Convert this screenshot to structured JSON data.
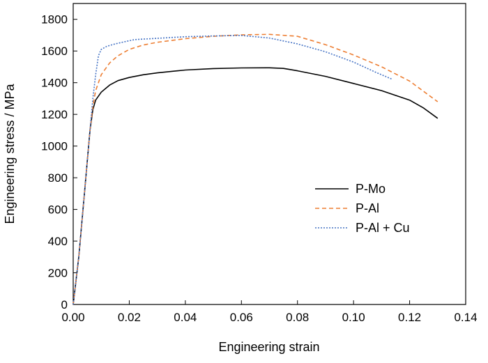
{
  "chart_data": {
    "type": "line",
    "title": "",
    "xlabel": "Engineering strain",
    "ylabel": "Engineering stress / MPa",
    "xlim": [
      0,
      0.14
    ],
    "ylim": [
      0,
      1900
    ],
    "x_ticks": [
      "0.00",
      "0.02",
      "0.04",
      "0.06",
      "0.08",
      "0.10",
      "0.12",
      "0.14"
    ],
    "y_ticks": [
      "0",
      "200",
      "400",
      "600",
      "800",
      "1000",
      "1200",
      "1400",
      "1600",
      "1800"
    ],
    "grid": false,
    "legend_position": "right",
    "series": [
      {
        "name": "P-Mo",
        "color": "#000000",
        "dash": "solid",
        "points": [
          [
            0,
            0
          ],
          [
            0.002,
            300
          ],
          [
            0.004,
            700
          ],
          [
            0.006,
            1100
          ],
          [
            0.007,
            1230
          ],
          [
            0.008,
            1290
          ],
          [
            0.01,
            1340
          ],
          [
            0.013,
            1385
          ],
          [
            0.016,
            1413
          ],
          [
            0.02,
            1433
          ],
          [
            0.025,
            1450
          ],
          [
            0.03,
            1462
          ],
          [
            0.04,
            1480
          ],
          [
            0.05,
            1489
          ],
          [
            0.06,
            1493
          ],
          [
            0.07,
            1494
          ],
          [
            0.075,
            1490
          ],
          [
            0.08,
            1475
          ],
          [
            0.09,
            1440
          ],
          [
            0.1,
            1395
          ],
          [
            0.11,
            1350
          ],
          [
            0.12,
            1290
          ],
          [
            0.125,
            1240
          ],
          [
            0.13,
            1175
          ]
        ]
      },
      {
        "name": "P-Al",
        "color": "#ED7D31",
        "dash": "dashed",
        "points": [
          [
            0,
            0
          ],
          [
            0.002,
            300
          ],
          [
            0.004,
            700
          ],
          [
            0.006,
            1100
          ],
          [
            0.007,
            1250
          ],
          [
            0.008,
            1350
          ],
          [
            0.01,
            1450
          ],
          [
            0.013,
            1525
          ],
          [
            0.016,
            1570
          ],
          [
            0.02,
            1610
          ],
          [
            0.025,
            1638
          ],
          [
            0.03,
            1655
          ],
          [
            0.04,
            1678
          ],
          [
            0.05,
            1693
          ],
          [
            0.06,
            1702
          ],
          [
            0.07,
            1705
          ],
          [
            0.08,
            1693
          ],
          [
            0.09,
            1640
          ],
          [
            0.1,
            1575
          ],
          [
            0.11,
            1500
          ],
          [
            0.12,
            1410
          ],
          [
            0.13,
            1280
          ]
        ]
      },
      {
        "name": "P-Al + Cu",
        "color": "#4472C4",
        "dash": "dotted",
        "points": [
          [
            0,
            0
          ],
          [
            0.002,
            300
          ],
          [
            0.004,
            700
          ],
          [
            0.006,
            1100
          ],
          [
            0.007,
            1300
          ],
          [
            0.008,
            1450
          ],
          [
            0.009,
            1570
          ],
          [
            0.01,
            1610
          ],
          [
            0.012,
            1630
          ],
          [
            0.015,
            1645
          ],
          [
            0.02,
            1665
          ],
          [
            0.022,
            1672
          ],
          [
            0.03,
            1680
          ],
          [
            0.04,
            1690
          ],
          [
            0.05,
            1695
          ],
          [
            0.06,
            1698
          ],
          [
            0.07,
            1682
          ],
          [
            0.08,
            1645
          ],
          [
            0.09,
            1595
          ],
          [
            0.1,
            1530
          ],
          [
            0.108,
            1465
          ],
          [
            0.114,
            1420
          ]
        ]
      }
    ]
  }
}
